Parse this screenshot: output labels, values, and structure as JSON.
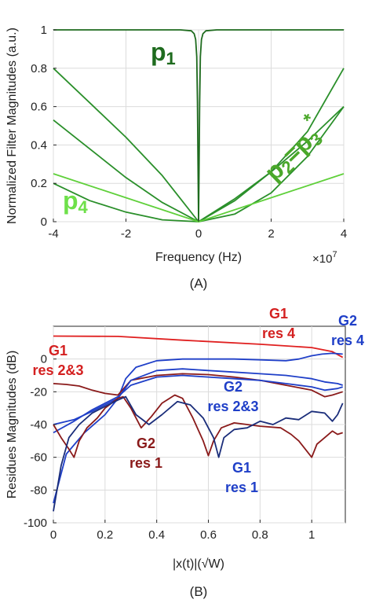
{
  "chart_data": [
    {
      "type": "line",
      "panel_label": "(A)",
      "xlabel": "Frequency (Hz)",
      "ylabel": "Normalized Filter Magnitudes (a.u.)",
      "x_exponent_label": "×10",
      "x_exponent_sup": "7",
      "xlim": [
        -4,
        4
      ],
      "ylim": [
        0,
        1
      ],
      "xticks": [
        "-4",
        "-2",
        "0",
        "2",
        "4"
      ],
      "yticks": [
        "0",
        "0.2",
        "0.4",
        "0.6",
        "0.8",
        "1"
      ],
      "grid": true,
      "annotations": {
        "p1": {
          "base": "p",
          "sub": "1",
          "color": "#1e6b1e"
        },
        "p23": {
          "base": "p",
          "sub2": "2",
          "eq": "=p",
          "sub3": "3",
          "sup": "*",
          "color": "#4aa82a"
        },
        "p4": {
          "base": "p",
          "sub": "4",
          "color": "#6ee04a"
        }
      },
      "series": [
        {
          "name": "p1",
          "color": "#1e6b1e",
          "x": [
            -4,
            -1,
            -0.5,
            -0.2,
            -0.12,
            -0.08,
            -0.05,
            -0.03,
            -0.015,
            0,
            0.015,
            0.03,
            0.05,
            0.08,
            0.12,
            0.2,
            0.5,
            1,
            4
          ],
          "y": [
            1,
            1,
            1,
            0.995,
            0.98,
            0.95,
            0.86,
            0.62,
            0.3,
            0,
            0.3,
            0.62,
            0.86,
            0.95,
            0.98,
            0.995,
            1,
            1,
            1
          ]
        },
        {
          "name": "p2=p3* (a)",
          "color": "#2a8f2a",
          "x": [
            -4,
            -3,
            -2,
            -1,
            0,
            1,
            2,
            3,
            4
          ],
          "y": [
            0.8,
            0.62,
            0.44,
            0.24,
            0,
            0.04,
            0.15,
            0.34,
            0.6
          ]
        },
        {
          "name": "p2=p3* (b)",
          "color": "#2a8f2a",
          "x": [
            -4,
            -3,
            -2,
            -1,
            0,
            1,
            2,
            3,
            4
          ],
          "y": [
            0.53,
            0.38,
            0.23,
            0.1,
            0,
            0.12,
            0.26,
            0.42,
            0.6
          ]
        },
        {
          "name": "p2=p3* (c)",
          "color": "#2a8f2a",
          "x": [
            -4,
            -3,
            -2,
            -1,
            0,
            1,
            2,
            3,
            4
          ],
          "y": [
            0.2,
            0.11,
            0.05,
            0.01,
            0,
            0.11,
            0.26,
            0.47,
            0.8
          ]
        },
        {
          "name": "p4",
          "color": "#5fd03a",
          "x": [
            -4,
            -2,
            0,
            2,
            4
          ],
          "y": [
            0.25,
            0.125,
            0,
            0.125,
            0.25
          ]
        }
      ]
    },
    {
      "type": "line",
      "panel_label": "(B)",
      "xlabel": "|x(t)|(√W)",
      "ylabel": "Residues Magnitudes (dB)",
      "xlim": [
        0,
        1.13
      ],
      "ylim": [
        -100,
        20
      ],
      "xticks": [
        "0",
        "0.2",
        "0.4",
        "0.6",
        "0.8",
        "1"
      ],
      "yticks": [
        "-100",
        "-80",
        "-60",
        "-40",
        "-20",
        "0"
      ],
      "grid": true,
      "annotations": {
        "g1res4": {
          "line1": "G1",
          "line2": "res 4",
          "color": "#d42020"
        },
        "g2res4": {
          "line1": "G2",
          "line2": "res 4",
          "color": "#1f3fc8"
        },
        "g1res23": {
          "line1": "G1",
          "line2": "res 2&3",
          "color": "#d42020"
        },
        "g2res23": {
          "line1": "G2",
          "line2": "res 2&3",
          "color": "#1f3fc8"
        },
        "g2res1": {
          "line1": "G2",
          "line2": "res 1",
          "color": "#8a1a1a"
        },
        "g1res1": {
          "line1": "G1",
          "line2": "res 1",
          "color": "#1f3fc8"
        }
      },
      "series": [
        {
          "name": "G1 res 4",
          "color": "#e02020",
          "x": [
            0,
            0.25,
            0.5,
            0.8,
            1.0,
            1.08,
            1.12
          ],
          "y": [
            14,
            13.8,
            11.5,
            9,
            7,
            4.5,
            1
          ]
        },
        {
          "name": "G2 res 4",
          "color": "#1f3fc8",
          "x": [
            0,
            0.05,
            0.12,
            0.2,
            0.25,
            0.28,
            0.32,
            0.4,
            0.5,
            0.6,
            0.7,
            0.8,
            0.9,
            0.95,
            1.0,
            1.04,
            1.08,
            1.12
          ],
          "y": [
            -88,
            -58,
            -45,
            -34,
            -24,
            -12,
            -5,
            -1,
            0,
            0,
            0,
            -0.5,
            -1,
            0,
            2,
            3,
            3.5,
            3
          ]
        },
        {
          "name": "G1 res 2&3",
          "color": "#8a1a1a",
          "x": [
            0,
            0.05,
            0.1,
            0.15,
            0.2,
            0.25,
            0.3,
            0.4,
            0.5,
            0.6,
            0.7,
            0.8,
            0.9,
            1.0,
            1.05,
            1.08,
            1.12
          ],
          "y": [
            -15,
            -15.5,
            -16.5,
            -19,
            -21,
            -22,
            -13,
            -10,
            -9,
            -9.5,
            -11,
            -13,
            -16,
            -19,
            -23,
            -22,
            -20
          ]
        },
        {
          "name": "G2 res 2&3 (a)",
          "color": "#1f3fc8",
          "x": [
            0,
            0.08,
            0.15,
            0.2,
            0.25,
            0.3,
            0.4,
            0.5,
            0.6,
            0.7,
            0.8,
            0.9,
            1.0,
            1.05,
            1.1,
            1.12
          ],
          "y": [
            -40,
            -37,
            -32,
            -28,
            -24,
            -13,
            -7,
            -6,
            -7,
            -8,
            -9,
            -10,
            -12,
            -14,
            -15,
            -16
          ]
        },
        {
          "name": "G2 res 2&3 (b)",
          "color": "#1f3fc8",
          "x": [
            0,
            0.08,
            0.15,
            0.2,
            0.25,
            0.3,
            0.4,
            0.5,
            0.6,
            0.7,
            0.8,
            0.9,
            1.0,
            1.05,
            1.1,
            1.12
          ],
          "y": [
            -45,
            -38,
            -31,
            -27,
            -23,
            -16,
            -11,
            -10,
            -11,
            -12,
            -13,
            -15,
            -17,
            -19,
            -18,
            -17
          ]
        },
        {
          "name": "G2 res 1",
          "color": "#8a1a1a",
          "x": [
            0,
            0.03,
            0.06,
            0.08,
            0.1,
            0.13,
            0.17,
            0.2,
            0.25,
            0.27,
            0.3,
            0.34,
            0.38,
            0.42,
            0.47,
            0.5,
            0.54,
            0.58,
            0.6,
            0.62,
            0.65,
            0.7,
            0.75,
            0.8,
            0.88,
            0.92,
            0.95,
            0.98,
            1.0,
            1.02,
            1.05,
            1.08,
            1.1,
            1.12
          ],
          "y": [
            -40,
            -48,
            -55,
            -60,
            -50,
            -42,
            -36,
            -30,
            -24,
            -23,
            -30,
            -42,
            -35,
            -27,
            -22,
            -24,
            -36,
            -50,
            -59,
            -50,
            -42,
            -39,
            -40,
            -41,
            -42,
            -46,
            -50,
            -56,
            -60,
            -52,
            -48,
            -44,
            -46,
            -45
          ]
        },
        {
          "name": "G1 res 1",
          "color": "#1a2d7a",
          "x": [
            0,
            0.03,
            0.06,
            0.1,
            0.15,
            0.2,
            0.25,
            0.28,
            0.32,
            0.37,
            0.42,
            0.48,
            0.53,
            0.58,
            0.62,
            0.64,
            0.66,
            0.7,
            0.75,
            0.8,
            0.85,
            0.9,
            0.95,
            1.0,
            1.05,
            1.08,
            1.1,
            1.12
          ],
          "y": [
            -93,
            -65,
            -48,
            -40,
            -33,
            -29,
            -25,
            -23,
            -34,
            -40,
            -34,
            -26,
            -28,
            -36,
            -48,
            -60,
            -48,
            -43,
            -42,
            -38,
            -40,
            -36,
            -37,
            -32,
            -33,
            -38,
            -34,
            -27
          ]
        }
      ]
    }
  ]
}
